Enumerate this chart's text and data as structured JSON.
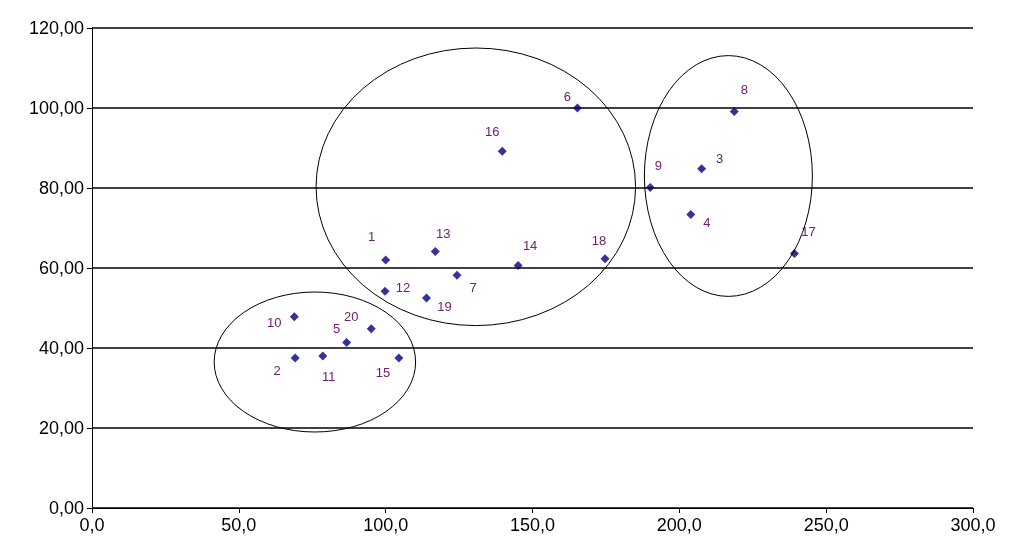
{
  "chart_data": {
    "type": "scatter",
    "marker": "diamond",
    "grid": "y",
    "x": [
      100,
      69.2,
      207.6,
      203.9,
      86.7,
      165.3,
      124.3,
      218.7,
      190.1,
      68.9,
      78.6,
      99.8,
      116.9,
      145.1,
      104.5,
      139.7,
      239.2,
      174.7,
      113.9,
      95.1
    ],
    "values": [
      62,
      37.5,
      84.8,
      73.4,
      41.4,
      100,
      58.2,
      99.1,
      80.1,
      47.8,
      38,
      54.2,
      64.1,
      60.6,
      37.5,
      89.2,
      63.6,
      62.3,
      52.5,
      44.8
    ],
    "color": "#000080",
    "xlim": [
      0,
      300
    ],
    "xticks": [
      {
        "value": 0,
        "label": "0,0"
      },
      {
        "value": 50,
        "label": "50,0"
      },
      {
        "value": 100,
        "label": "100,0"
      },
      {
        "value": 150,
        "label": "150,0"
      },
      {
        "value": 200,
        "label": "200,0"
      },
      {
        "value": 250,
        "label": "250,0"
      },
      {
        "value": 300,
        "label": "300,0"
      }
    ],
    "ylim": [
      0,
      120
    ],
    "yticks": [
      {
        "value": 0,
        "label": "0,00"
      },
      {
        "value": 20,
        "label": "20,00"
      },
      {
        "value": 40,
        "label": "40,00"
      },
      {
        "value": 60,
        "label": "60,00"
      },
      {
        "value": 80,
        "label": "80,00"
      },
      {
        "value": 100,
        "label": "100,00"
      },
      {
        "value": 120,
        "label": "120,00"
      }
    ],
    "annotations": [
      {
        "text": "1",
        "x": 100,
        "y": 62
      },
      {
        "text": "2",
        "x": 69.2,
        "y": 37.5
      },
      {
        "text": "3",
        "x": 207.6,
        "y": 84.8
      },
      {
        "text": "4",
        "x": 203.9,
        "y": 73.4
      },
      {
        "text": "5",
        "x": 86.7,
        "y": 41.4
      },
      {
        "text": "6",
        "x": 165.3,
        "y": 100
      },
      {
        "text": "7",
        "x": 124.3,
        "y": 58.2
      },
      {
        "text": "8",
        "x": 218.7,
        "y": 99.1
      },
      {
        "text": "9",
        "x": 190.1,
        "y": 80.1
      },
      {
        "text": "10",
        "x": 68.9,
        "y": 47.8
      },
      {
        "text": "11",
        "x": 78.6,
        "y": 38
      },
      {
        "text": "12",
        "x": 99.8,
        "y": 54.2
      },
      {
        "text": "13",
        "x": 116.9,
        "y": 64.1
      },
      {
        "text": "14",
        "x": 145.1,
        "y": 60.6
      },
      {
        "text": "15",
        "x": 104.5,
        "y": 37.5
      },
      {
        "text": "16",
        "x": 139.7,
        "y": 89.2
      },
      {
        "text": "17",
        "x": 239.2,
        "y": 63.6
      },
      {
        "text": "18",
        "x": 174.7,
        "y": 62.3
      },
      {
        "text": "19",
        "x": 113.9,
        "y": 52.5
      },
      {
        "text": "20",
        "x": 95.1,
        "y": 44.8
      }
    ]
  }
}
